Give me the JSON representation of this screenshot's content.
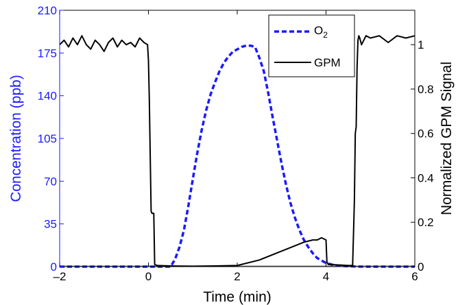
{
  "chart_data": {
    "type": "line",
    "xlabel": "Time (min)",
    "ylabel_left": "Concentration (ppb)",
    "ylabel_right": "Normalized GPM Signal",
    "xlim": [
      -2,
      6
    ],
    "ylim_left": [
      0,
      210
    ],
    "ylim_right": [
      0,
      1.155
    ],
    "x_ticks": [
      -2,
      0,
      2,
      4,
      6
    ],
    "x_tick_labels": [
      "–2",
      "0",
      "2",
      "4",
      "6"
    ],
    "y_left_ticks": [
      0,
      35,
      70,
      105,
      140,
      175,
      210
    ],
    "y_left_tick_labels": [
      "0",
      "35",
      "70",
      "105",
      "140",
      "175",
      "210"
    ],
    "y_right_ticks": [
      0,
      0.2,
      0.4,
      0.6,
      0.8,
      1
    ],
    "y_right_tick_labels": [
      "0",
      "0.2",
      "0.4",
      "0.6",
      "0.8",
      "1"
    ],
    "legend": {
      "position": "top-right",
      "entries": [
        "O2",
        "GPM"
      ]
    },
    "colors": {
      "o2": "#1a1aff",
      "gpm": "#000000",
      "left_axis": "#1a1aff",
      "right_axis": "#000000"
    },
    "series": [
      {
        "name": "O2",
        "axis": "left",
        "style": "dashed",
        "x": [
          -2,
          0.5,
          0.6,
          0.7,
          0.8,
          0.9,
          1.0,
          1.1,
          1.2,
          1.3,
          1.4,
          1.5,
          1.6,
          1.7,
          1.8,
          1.9,
          2.0,
          2.1,
          2.2,
          2.3,
          2.4,
          2.5,
          2.6,
          2.7,
          2.8,
          2.9,
          3.0,
          3.1,
          3.2,
          3.3,
          3.4,
          3.5,
          3.6,
          3.7,
          3.8,
          3.9,
          4.0,
          4.1,
          4.2,
          4.4,
          4.6,
          4.8,
          5.0,
          6.0
        ],
        "y": [
          0,
          0,
          6,
          16,
          30,
          50,
          72,
          93,
          112,
          128,
          141,
          151,
          160,
          167,
          172,
          176,
          178,
          180,
          181,
          181,
          180,
          171,
          160,
          142,
          122,
          103,
          84,
          67,
          52,
          40,
          30,
          22,
          16,
          11,
          7,
          5,
          3,
          2,
          1,
          0.5,
          0.2,
          0,
          0,
          0
        ]
      },
      {
        "name": "GPM",
        "axis": "right",
        "style": "solid",
        "x": [
          -2,
          -1.9,
          -1.8,
          -1.7,
          -1.6,
          -1.5,
          -1.4,
          -1.3,
          -1.2,
          -1.1,
          -1.0,
          -0.9,
          -0.8,
          -0.7,
          -0.6,
          -0.5,
          -0.4,
          -0.3,
          -0.2,
          -0.1,
          -0.02,
          0.0,
          0.02,
          0.04,
          0.06,
          0.08,
          0.12,
          0.14,
          0.2,
          0.5,
          1.0,
          1.5,
          2.0,
          2.5,
          3.0,
          3.5,
          3.7,
          3.8,
          3.9,
          4.0,
          4.02,
          4.05,
          4.5,
          4.6,
          4.62,
          4.64,
          4.66,
          4.68,
          4.7,
          4.72,
          4.74,
          4.76,
          4.8,
          4.9,
          5.0,
          5.2,
          5.4,
          5.6,
          5.8,
          6.0
        ],
        "y": [
          1.0,
          1.02,
          0.99,
          1.03,
          1.0,
          1.04,
          1.0,
          0.98,
          1.02,
          1.0,
          0.97,
          1.01,
          1.03,
          0.99,
          1.02,
          1.0,
          1.01,
          0.99,
          1.03,
          1.01,
          1.0,
          0.93,
          0.75,
          0.5,
          0.25,
          0.24,
          0.24,
          0.01,
          0.005,
          0.003,
          0.002,
          0.003,
          0.005,
          0.03,
          0.07,
          0.11,
          0.12,
          0.12,
          0.13,
          0.12,
          0.02,
          0.01,
          0.005,
          0.005,
          0.15,
          0.3,
          0.6,
          0.63,
          0.9,
          1.02,
          1.04,
          1.03,
          1.0,
          1.04,
          1.03,
          1.04,
          1.01,
          1.04,
          1.03,
          1.04
        ]
      }
    ]
  }
}
